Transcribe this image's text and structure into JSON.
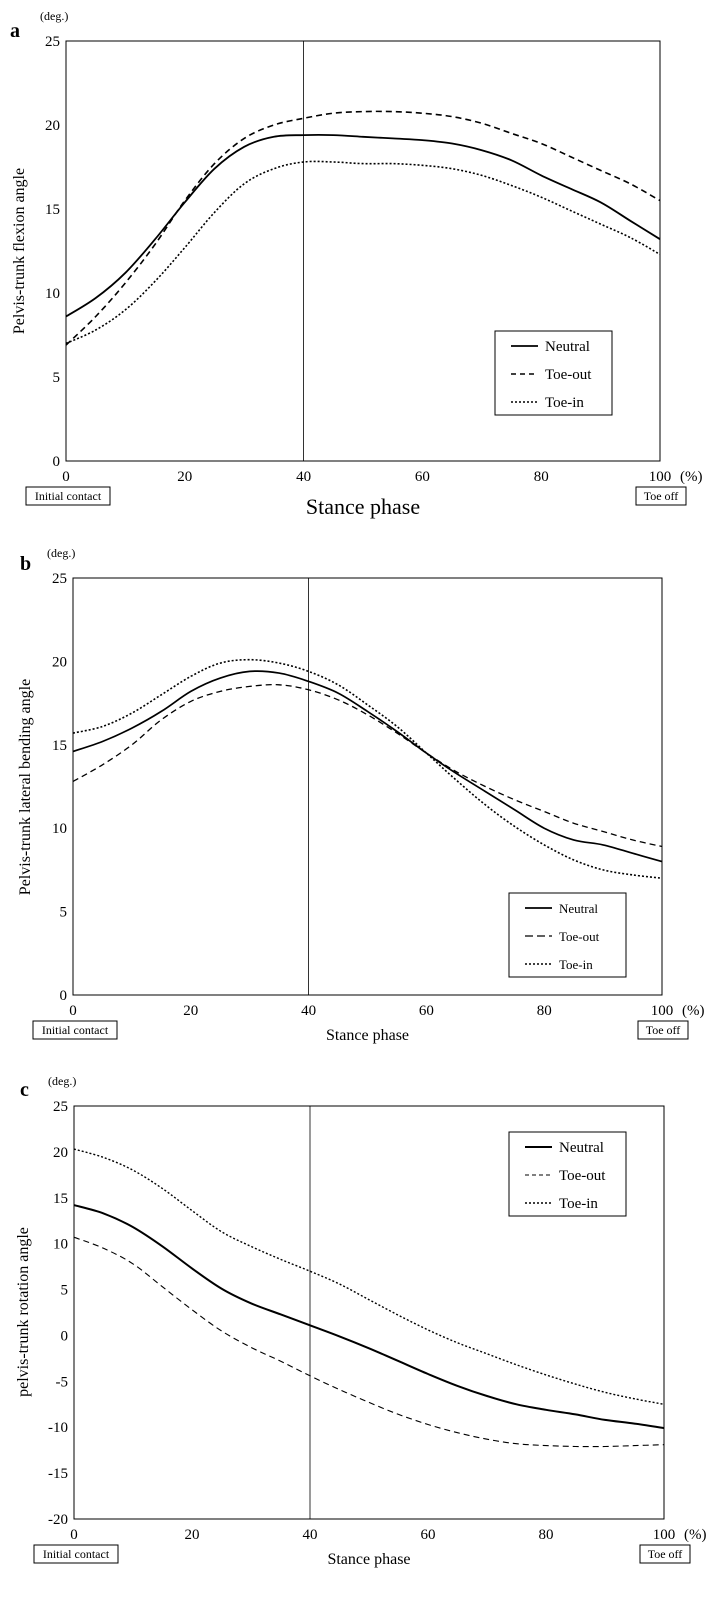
{
  "chart_data": [
    {
      "panel": "a",
      "type": "line",
      "unit": "(deg.)",
      "ylabel": "Pelvis-trunk flexion angle",
      "xlabel": "Stance phase",
      "x_unit": "(%)",
      "start_box": "Initial contact",
      "end_box": "Toe off",
      "xlim": [
        0,
        100
      ],
      "ylim": [
        0,
        25
      ],
      "xticks": [
        0,
        20,
        40,
        60,
        80,
        100
      ],
      "yticks": [
        0,
        5,
        10,
        15,
        20,
        25
      ],
      "vline": 40,
      "legend_position": "bottom-right",
      "x": [
        0,
        5,
        10,
        15,
        20,
        25,
        30,
        35,
        40,
        45,
        50,
        55,
        60,
        65,
        70,
        75,
        80,
        85,
        90,
        95,
        100
      ],
      "series": [
        {
          "name": "Neutral",
          "style": "solid",
          "values": [
            8.6,
            9.7,
            11.2,
            13.2,
            15.4,
            17.4,
            18.7,
            19.3,
            19.4,
            19.4,
            19.3,
            19.2,
            19.1,
            18.9,
            18.5,
            17.9,
            17.0,
            16.2,
            15.4,
            14.3,
            13.2
          ]
        },
        {
          "name": "Toe-out",
          "style": "dashed",
          "values": [
            6.9,
            8.6,
            10.6,
            12.9,
            15.5,
            17.7,
            19.2,
            20.0,
            20.4,
            20.7,
            20.8,
            20.8,
            20.7,
            20.5,
            20.1,
            19.5,
            18.9,
            18.1,
            17.3,
            16.5,
            15.5
          ]
        },
        {
          "name": "Toe-in",
          "style": "dotted",
          "values": [
            7.0,
            7.8,
            9.0,
            10.7,
            12.7,
            14.8,
            16.5,
            17.4,
            17.8,
            17.8,
            17.7,
            17.7,
            17.6,
            17.4,
            17.0,
            16.4,
            15.7,
            14.9,
            14.1,
            13.3,
            12.3
          ]
        }
      ]
    },
    {
      "panel": "b",
      "type": "line",
      "unit": "(deg.)",
      "ylabel": "Pelvis-trunk lateral bending angle",
      "xlabel": "Stance phase",
      "x_unit": "(%)",
      "start_box": "Initial contact",
      "end_box": "Toe off",
      "xlim": [
        0,
        100
      ],
      "ylim": [
        0,
        25
      ],
      "xticks": [
        0,
        20,
        40,
        60,
        80,
        100
      ],
      "yticks": [
        0,
        5,
        10,
        15,
        20,
        25
      ],
      "vline": 40,
      "legend_position": "bottom-right",
      "x": [
        0,
        5,
        10,
        15,
        20,
        25,
        30,
        35,
        40,
        45,
        50,
        55,
        60,
        65,
        70,
        75,
        80,
        85,
        90,
        95,
        100
      ],
      "series": [
        {
          "name": "Neutral",
          "style": "solid",
          "values": [
            14.6,
            15.2,
            16.0,
            17.0,
            18.2,
            19.0,
            19.4,
            19.3,
            18.8,
            18.1,
            17.0,
            15.8,
            14.5,
            13.3,
            12.2,
            11.1,
            10.0,
            9.3,
            9.0,
            8.5,
            8.0
          ]
        },
        {
          "name": "Toe-out",
          "style": "dashed",
          "values": [
            12.8,
            13.8,
            15.0,
            16.5,
            17.6,
            18.2,
            18.5,
            18.6,
            18.3,
            17.7,
            16.8,
            15.7,
            14.5,
            13.4,
            12.5,
            11.7,
            11.0,
            10.3,
            9.8,
            9.3,
            8.9
          ]
        },
        {
          "name": "Toe-in",
          "style": "dotted",
          "values": [
            15.7,
            16.1,
            16.9,
            18.0,
            19.1,
            19.9,
            20.1,
            19.9,
            19.4,
            18.6,
            17.4,
            16.1,
            14.5,
            12.9,
            11.4,
            10.1,
            9.0,
            8.1,
            7.5,
            7.2,
            7.0
          ]
        }
      ]
    },
    {
      "panel": "c",
      "type": "line",
      "unit": "(deg.)",
      "ylabel": "pelvis-trunk rotation angle",
      "xlabel": "Stance phase",
      "x_unit": "(%)",
      "start_box": "Initial contact",
      "end_box": "Toe off",
      "xlim": [
        0,
        100
      ],
      "ylim": [
        -20,
        25
      ],
      "xticks": [
        0,
        20,
        40,
        60,
        80,
        100
      ],
      "yticks": [
        -20,
        -15,
        -10,
        -5,
        0,
        5,
        10,
        15,
        20,
        25
      ],
      "vline": 40,
      "legend_position": "top-right",
      "x": [
        0,
        5,
        10,
        15,
        20,
        25,
        30,
        35,
        40,
        45,
        50,
        55,
        60,
        65,
        70,
        75,
        80,
        85,
        90,
        95,
        100
      ],
      "series": [
        {
          "name": "Neutral",
          "style": "solid",
          "values": [
            14.2,
            13.3,
            11.8,
            9.7,
            7.3,
            5.1,
            3.5,
            2.3,
            1.1,
            -0.1,
            -1.4,
            -2.8,
            -4.2,
            -5.5,
            -6.6,
            -7.5,
            -8.1,
            -8.6,
            -9.2,
            -9.6,
            -10.1
          ]
        },
        {
          "name": "Toe-out",
          "style": "dashed",
          "values": [
            10.7,
            9.5,
            7.8,
            5.3,
            2.8,
            0.5,
            -1.3,
            -2.8,
            -4.4,
            -5.9,
            -7.3,
            -8.6,
            -9.7,
            -10.6,
            -11.3,
            -11.8,
            -12.0,
            -12.1,
            -12.1,
            -12.0,
            -11.9
          ]
        },
        {
          "name": "Toe-in",
          "style": "dotted",
          "values": [
            20.3,
            19.4,
            18.0,
            16.0,
            13.6,
            11.3,
            9.7,
            8.3,
            7.0,
            5.6,
            3.9,
            2.2,
            0.6,
            -0.8,
            -2.0,
            -3.2,
            -4.3,
            -5.3,
            -6.2,
            -6.9,
            -7.5
          ]
        }
      ]
    }
  ]
}
